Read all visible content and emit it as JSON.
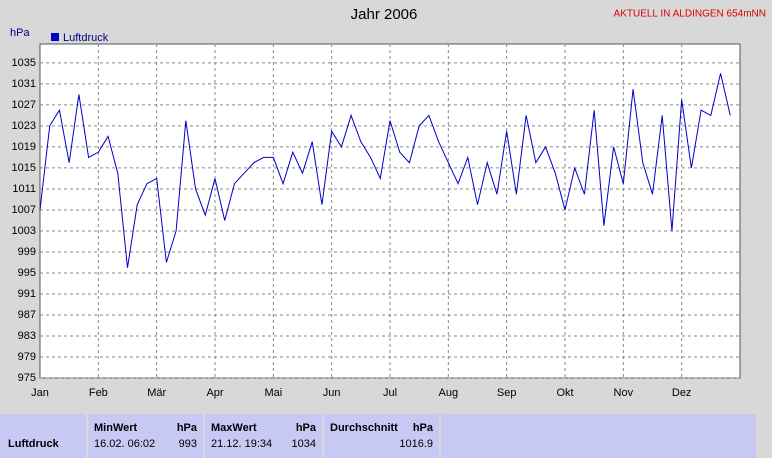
{
  "chart_data": {
    "type": "line",
    "title": "Jahr 2006",
    "annotation": "AKTUELL IN ALDINGEN 654mNN",
    "ylabel": "hPa",
    "categories": [
      "Jan",
      null,
      null,
      null,
      null,
      null,
      "Feb",
      null,
      null,
      null,
      null,
      null,
      "Mär",
      null,
      null,
      null,
      null,
      null,
      "Apr",
      null,
      null,
      null,
      null,
      null,
      "Mai",
      null,
      null,
      null,
      null,
      null,
      "Jun",
      null,
      null,
      null,
      null,
      null,
      "Jul",
      null,
      null,
      null,
      null,
      null,
      "Aug",
      null,
      null,
      null,
      null,
      null,
      "Sep",
      null,
      null,
      null,
      null,
      null,
      "Okt",
      null,
      null,
      null,
      null,
      null,
      "Nov",
      null,
      null,
      null,
      null,
      null,
      "Dez",
      null,
      null,
      null,
      null,
      null
    ],
    "series": [
      {
        "name": "Luftdruck",
        "color": "#0000cc",
        "values": [
          1007,
          1023,
          1026,
          1016,
          1029,
          1017,
          1018,
          1021,
          1014,
          996,
          1008,
          1012,
          1013,
          997,
          1003,
          1024,
          1011,
          1006,
          1013,
          1005,
          1012,
          1014,
          1016,
          1017,
          1017,
          1012,
          1018,
          1014,
          1020,
          1008,
          1022,
          1019,
          1025,
          1020,
          1017,
          1013,
          1024,
          1018,
          1016,
          1023,
          1025,
          1020,
          1016,
          1012,
          1017,
          1008,
          1016,
          1010,
          1022,
          1010,
          1025,
          1016,
          1019,
          1014,
          1007,
          1015,
          1010,
          1026,
          1004,
          1019,
          1012,
          1030,
          1016,
          1010,
          1025,
          1003,
          1028,
          1015,
          1026,
          1025,
          1033,
          1025
        ]
      }
    ],
    "ylim": [
      975,
      1038.6
    ],
    "yticks": [
      975,
      979,
      983,
      987,
      991,
      995,
      999,
      1003,
      1007,
      1011,
      1015,
      1019,
      1023,
      1027,
      1031,
      1035
    ],
    "grid": true,
    "legend": "top-left"
  },
  "table": {
    "columns": [
      "MinWert",
      "hPa",
      "MaxWert",
      "hPa",
      "Durchschnitt",
      "hPa"
    ],
    "rows": [
      [
        "Luftdruck",
        "16.02.  06:02",
        "993",
        "21.12.  19:34",
        "1034",
        "1016.9"
      ]
    ]
  }
}
